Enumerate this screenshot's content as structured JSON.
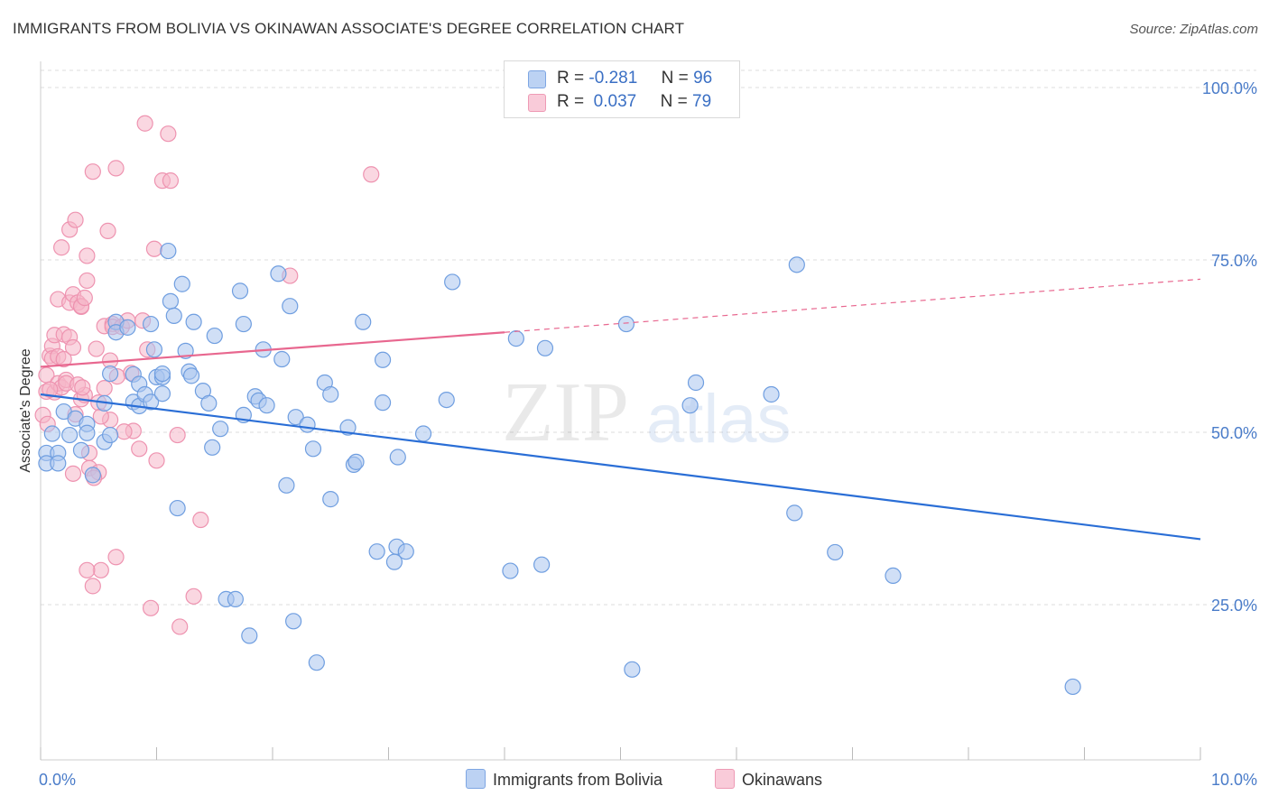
{
  "header": {
    "title": "IMMIGRANTS FROM BOLIVIA VS OKINAWAN ASSOCIATE'S DEGREE CORRELATION CHART",
    "source": "Source: ZipAtlas.com"
  },
  "watermark": {
    "zip": "ZIP",
    "atlas": "atlas"
  },
  "legend": {
    "rows": [
      {
        "r_label": "R =",
        "r_value": "-0.281",
        "n_label": "N =",
        "n_value": "96",
        "color": "#a9c4ee"
      },
      {
        "r_label": "R =",
        "r_value": " 0.037",
        "n_label": "N =",
        "n_value": "79",
        "color": "#f6b6c9"
      }
    ]
  },
  "bottom_legend": [
    {
      "label": "Immigrants from Bolivia",
      "color": "#a9c4ee"
    },
    {
      "label": "Okinawans",
      "color": "#f6b6c9"
    }
  ],
  "chart_data": {
    "type": "scatter",
    "ylabel": "Associate's Degree",
    "x_tick_labels": [
      "0.0%",
      "10.0%"
    ],
    "y_tick_labels": [
      "100.0%",
      "75.0%",
      "50.0%",
      "25.0%"
    ],
    "xlim": [
      0,
      10
    ],
    "ylim": [
      0,
      105
    ],
    "y_ticks": [
      100,
      75,
      50,
      25
    ],
    "grid": true,
    "series": [
      {
        "name": "Immigrants from Bolivia",
        "color": "#6f9ee0",
        "fill": "#a9c4ee",
        "trend": {
          "x0": 0,
          "y0": 55.5,
          "x1": 10,
          "y1": 34.5,
          "color": "#2a6ed6"
        },
        "points": [
          [
            0.05,
            47.0
          ],
          [
            0.05,
            45.5
          ],
          [
            0.1,
            49.8
          ],
          [
            0.15,
            47.0
          ],
          [
            0.15,
            45.5
          ],
          [
            0.2,
            53.0
          ],
          [
            0.25,
            49.6
          ],
          [
            0.3,
            52.0
          ],
          [
            0.35,
            47.4
          ],
          [
            0.4,
            51.2
          ],
          [
            0.4,
            49.9
          ],
          [
            0.45,
            43.8
          ],
          [
            0.55,
            48.6
          ],
          [
            0.55,
            54.2
          ],
          [
            0.6,
            49.6
          ],
          [
            0.6,
            58.5
          ],
          [
            0.65,
            66.0
          ],
          [
            0.65,
            64.5
          ],
          [
            0.75,
            65.2
          ],
          [
            0.8,
            58.4
          ],
          [
            0.8,
            54.4
          ],
          [
            0.85,
            53.8
          ],
          [
            0.85,
            57.0
          ],
          [
            0.9,
            55.5
          ],
          [
            0.95,
            54.4
          ],
          [
            0.95,
            65.7
          ],
          [
            0.98,
            62.0
          ],
          [
            1.0,
            58.0
          ],
          [
            1.05,
            58.0
          ],
          [
            1.05,
            58.5
          ],
          [
            1.05,
            55.6
          ],
          [
            1.1,
            76.3
          ],
          [
            1.12,
            69.0
          ],
          [
            1.15,
            66.9
          ],
          [
            1.18,
            39.0
          ],
          [
            1.22,
            71.5
          ],
          [
            1.25,
            61.8
          ],
          [
            1.28,
            58.8
          ],
          [
            1.3,
            58.2
          ],
          [
            1.32,
            66.0
          ],
          [
            1.4,
            56.0
          ],
          [
            1.45,
            54.2
          ],
          [
            1.48,
            47.8
          ],
          [
            1.5,
            64.0
          ],
          [
            1.55,
            50.5
          ],
          [
            1.6,
            25.8
          ],
          [
            1.68,
            25.8
          ],
          [
            1.72,
            70.5
          ],
          [
            1.75,
            52.5
          ],
          [
            1.75,
            65.7
          ],
          [
            1.8,
            20.5
          ],
          [
            1.85,
            55.2
          ],
          [
            1.88,
            54.6
          ],
          [
            1.92,
            62.0
          ],
          [
            1.95,
            53.9
          ],
          [
            2.05,
            73.0
          ],
          [
            2.08,
            60.6
          ],
          [
            2.12,
            42.3
          ],
          [
            2.15,
            68.3
          ],
          [
            2.18,
            22.6
          ],
          [
            2.2,
            52.2
          ],
          [
            2.3,
            51.1
          ],
          [
            2.35,
            47.6
          ],
          [
            2.38,
            16.6
          ],
          [
            2.45,
            57.2
          ],
          [
            2.5,
            55.5
          ],
          [
            2.5,
            40.3
          ],
          [
            2.65,
            50.7
          ],
          [
            2.7,
            45.3
          ],
          [
            2.72,
            45.7
          ],
          [
            2.78,
            66.0
          ],
          [
            2.9,
            32.7
          ],
          [
            2.95,
            60.5
          ],
          [
            2.95,
            54.3
          ],
          [
            3.05,
            31.2
          ],
          [
            3.07,
            33.4
          ],
          [
            3.08,
            46.4
          ],
          [
            3.15,
            32.7
          ],
          [
            3.3,
            49.8
          ],
          [
            3.5,
            54.7
          ],
          [
            3.55,
            71.8
          ],
          [
            4.05,
            29.9
          ],
          [
            4.1,
            63.6
          ],
          [
            4.32,
            30.8
          ],
          [
            4.35,
            62.2
          ],
          [
            5.05,
            65.7
          ],
          [
            5.1,
            15.6
          ],
          [
            5.6,
            53.9
          ],
          [
            5.65,
            57.2
          ],
          [
            6.3,
            55.5
          ],
          [
            6.5,
            38.3
          ],
          [
            6.52,
            74.3
          ],
          [
            6.85,
            32.6
          ],
          [
            7.35,
            29.2
          ],
          [
            8.9,
            13.1
          ]
        ]
      },
      {
        "name": "Okinawans",
        "color": "#ee93b0",
        "fill": "#f6b6c9",
        "trend": {
          "x0": 0,
          "y0": 59.5,
          "x1": 4.0,
          "y1": 64.5,
          "dash_x1": 10,
          "dash_y1": 72.2,
          "color": "#e8678f"
        },
        "points": [
          [
            0.02,
            52.5
          ],
          [
            0.05,
            58.3
          ],
          [
            0.05,
            55.9
          ],
          [
            0.08,
            61.1
          ],
          [
            0.1,
            62.5
          ],
          [
            0.1,
            60.7
          ],
          [
            0.12,
            64.1
          ],
          [
            0.12,
            55.8
          ],
          [
            0.15,
            61.0
          ],
          [
            0.15,
            69.3
          ],
          [
            0.15,
            57.1
          ],
          [
            0.18,
            56.5
          ],
          [
            0.18,
            76.8
          ],
          [
            0.2,
            64.2
          ],
          [
            0.2,
            60.6
          ],
          [
            0.22,
            57.6
          ],
          [
            0.22,
            57.1
          ],
          [
            0.25,
            68.8
          ],
          [
            0.25,
            63.8
          ],
          [
            0.25,
            79.4
          ],
          [
            0.28,
            70.0
          ],
          [
            0.28,
            62.3
          ],
          [
            0.3,
            80.8
          ],
          [
            0.3,
            52.6
          ],
          [
            0.32,
            68.8
          ],
          [
            0.35,
            68.2
          ],
          [
            0.35,
            68.3
          ],
          [
            0.35,
            54.8
          ],
          [
            0.38,
            69.5
          ],
          [
            0.38,
            55.4
          ],
          [
            0.4,
            72.0
          ],
          [
            0.4,
            75.6
          ],
          [
            0.42,
            47.0
          ],
          [
            0.42,
            44.8
          ],
          [
            0.45,
            27.7
          ],
          [
            0.45,
            87.8
          ],
          [
            0.48,
            62.1
          ],
          [
            0.5,
            44.2
          ],
          [
            0.5,
            54.3
          ],
          [
            0.52,
            30.0
          ],
          [
            0.55,
            65.4
          ],
          [
            0.55,
            56.4
          ],
          [
            0.58,
            79.2
          ],
          [
            0.6,
            51.8
          ],
          [
            0.6,
            60.4
          ],
          [
            0.62,
            65.7
          ],
          [
            0.62,
            65.3
          ],
          [
            0.65,
            31.9
          ],
          [
            0.65,
            88.3
          ],
          [
            0.7,
            65.3
          ],
          [
            0.75,
            66.2
          ],
          [
            0.78,
            58.6
          ],
          [
            0.8,
            50.2
          ],
          [
            0.85,
            47.6
          ],
          [
            0.88,
            66.2
          ],
          [
            0.9,
            94.8
          ],
          [
            0.92,
            62.0
          ],
          [
            0.95,
            24.5
          ],
          [
            0.98,
            76.6
          ],
          [
            1.0,
            45.9
          ],
          [
            1.05,
            86.5
          ],
          [
            1.1,
            93.3
          ],
          [
            1.12,
            86.5
          ],
          [
            1.18,
            49.6
          ],
          [
            1.2,
            21.8
          ],
          [
            1.32,
            26.2
          ],
          [
            1.38,
            37.3
          ],
          [
            2.15,
            72.7
          ],
          [
            2.85,
            87.4
          ],
          [
            0.06,
            51.2
          ],
          [
            0.08,
            56.2
          ],
          [
            0.28,
            44.0
          ],
          [
            0.32,
            56.9
          ],
          [
            0.36,
            56.5
          ],
          [
            0.46,
            43.4
          ],
          [
            0.52,
            52.3
          ],
          [
            0.66,
            58.1
          ],
          [
            0.72,
            50.1
          ],
          [
            0.4,
            30.0
          ]
        ]
      }
    ]
  }
}
